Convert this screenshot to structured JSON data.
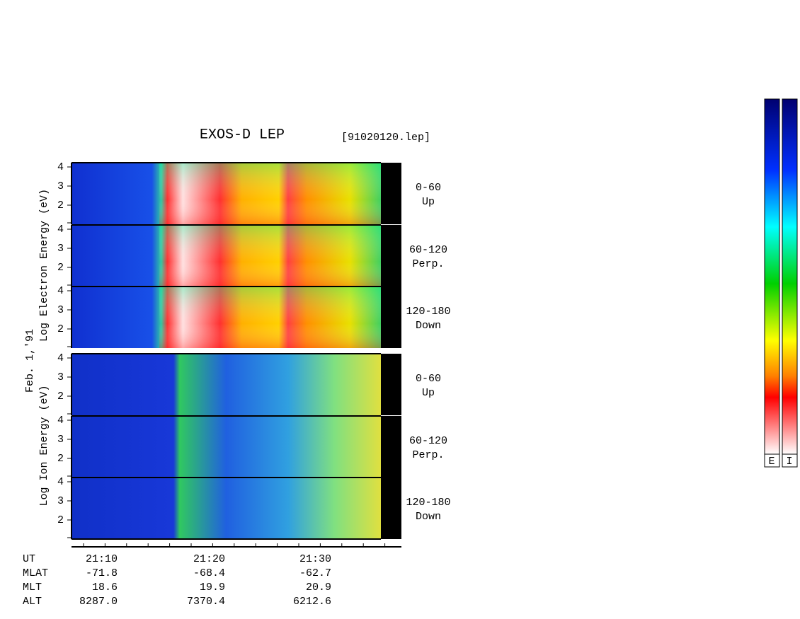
{
  "title": "EXOS-D LEP",
  "file": "[91020120.lep]",
  "date": "Feb. 1,'91",
  "electron_axis_label": "Log Electron Energy (eV)",
  "ion_axis_label": "Log Ion Energy (eV)",
  "yticks": [
    "4",
    "3",
    "2"
  ],
  "panel_labels": [
    [
      "0-60",
      "Up"
    ],
    [
      "60-120",
      "Perp."
    ],
    [
      "120-180",
      "Down"
    ]
  ],
  "time_axis": [
    {
      "name": "UT",
      "values": [
        "21:10",
        "21:20",
        "21:30"
      ]
    },
    {
      "name": "MLAT",
      "values": [
        "-71.8",
        "-68.4",
        "-62.7"
      ]
    },
    {
      "name": "MLT",
      "values": [
        "18.6",
        "19.9",
        "20.9"
      ]
    },
    {
      "name": "ALT",
      "values": [
        "8287.0",
        "7370.4",
        "6212.6"
      ]
    }
  ],
  "colorbar_labels": [
    "E",
    "I"
  ]
}
